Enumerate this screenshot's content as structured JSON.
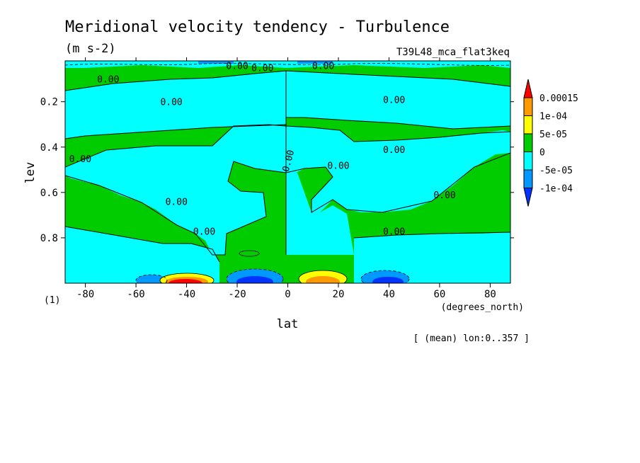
{
  "chart_data": {
    "type": "heatmap",
    "title": "Meridional velocity tendency - Turbulence",
    "units": "(m s-2)",
    "experiment": "T39L48_mca_flat3keq",
    "xlabel": "lat",
    "x_units": "(degrees_north)",
    "ylabel": "lev",
    "y_units": "(1)",
    "footer": "[ (mean) lon:0..357 ]",
    "xlim": [
      -88,
      88
    ],
    "ylim": [
      1.0,
      0.02
    ],
    "x_ticks": [
      -80,
      -60,
      -40,
      -20,
      0,
      20,
      40,
      60,
      80
    ],
    "x_tick_labels": [
      "-80",
      "-60",
      "-40",
      "-20",
      "0",
      "20",
      "40",
      "60",
      "80"
    ],
    "y_ticks": [
      0.2,
      0.4,
      0.6,
      0.8
    ],
    "y_tick_labels": [
      "0.2",
      "0.4",
      "0.6",
      "0.8"
    ],
    "colorbar": {
      "labels": [
        "0.00015",
        "1e-04",
        "5e-05",
        "0",
        "-5e-05",
        "-1e-04"
      ],
      "colors": [
        "#ff0000",
        "#ff9900",
        "#ffff00",
        "#00cc00",
        "#00ffff",
        "#0099ff",
        "#0033ff"
      ]
    },
    "contour_label": "0.00",
    "grid": false
  }
}
